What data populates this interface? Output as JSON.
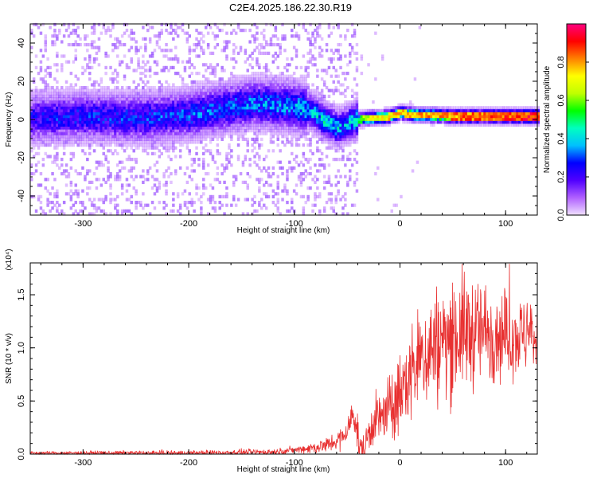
{
  "title": "C2E4.2025.186.22.30.R19",
  "chart_data": [
    {
      "type": "heatmap",
      "xlabel": "Height of straight line (km)",
      "ylabel": "Frequency (Hz)",
      "xlim": [
        -350,
        130
      ],
      "ylim": [
        -50,
        50
      ],
      "xticks": [
        -300,
        -200,
        -100,
        0,
        100
      ],
      "yticks": [
        -40,
        -20,
        0,
        20,
        40
      ],
      "colorbar": {
        "label": "Normalized spectral amplitude",
        "range": [
          0,
          1
        ],
        "ticks": [
          0.0,
          0.2,
          0.4,
          0.6,
          0.8
        ],
        "tick_labels": [
          "0.0",
          "0.2",
          "0.4",
          "0.6",
          "0.8"
        ],
        "colormap": [
          "#f0e0ff",
          "#b060ff",
          "#5000ff",
          "#0000ff",
          "#00c0ff",
          "#00ffc0",
          "#00ff00",
          "#c0ff00",
          "#ffff00",
          "#ff8000",
          "#ff0000",
          "#ff0080"
        ]
      },
      "ridge_center_hz": [
        [
          -350,
          0
        ],
        [
          -300,
          1
        ],
        [
          -250,
          0
        ],
        [
          -200,
          2
        ],
        [
          -160,
          6
        ],
        [
          -140,
          8
        ],
        [
          -120,
          7
        ],
        [
          -100,
          6
        ],
        [
          -90,
          5
        ],
        [
          -80,
          2
        ],
        [
          -70,
          -2
        ],
        [
          -60,
          -5
        ],
        [
          -55,
          -4
        ],
        [
          -45,
          -1
        ],
        [
          -30,
          0
        ],
        [
          -10,
          1
        ],
        [
          0,
          3
        ],
        [
          10,
          2
        ],
        [
          50,
          1
        ],
        [
          100,
          1
        ],
        [
          130,
          1
        ]
      ],
      "peak_amplitude": [
        [
          -350,
          0.28
        ],
        [
          -200,
          0.33
        ],
        [
          -150,
          0.35
        ],
        [
          -100,
          0.38
        ],
        [
          -70,
          0.45
        ],
        [
          -50,
          0.4
        ],
        [
          -30,
          0.72
        ],
        [
          0,
          0.8
        ],
        [
          50,
          0.85
        ],
        [
          100,
          0.9
        ],
        [
          130,
          0.95
        ]
      ]
    },
    {
      "type": "line",
      "xlabel": "Height of straight line (km)",
      "ylabel": "SNR (10 * v/v)",
      "y_multiplier": "(x10⁴)",
      "xlim": [
        -350,
        130
      ],
      "ylim": [
        0,
        1.8
      ],
      "xticks": [
        -300,
        -200,
        -100,
        0,
        100
      ],
      "yticks": [
        0.0,
        0.5,
        1.0,
        1.5
      ],
      "ytick_labels": [
        "0.0",
        "0.5",
        "1.0",
        "1.5"
      ],
      "series": [
        {
          "color": "#e83030",
          "envelope_center": [
            [
              -350,
              0.01
            ],
            [
              -200,
              0.01
            ],
            [
              -120,
              0.02
            ],
            [
              -90,
              0.05
            ],
            [
              -70,
              0.08
            ],
            [
              -55,
              0.15
            ],
            [
              -48,
              0.25
            ],
            [
              -45,
              0.4
            ],
            [
              -42,
              0.3
            ],
            [
              -38,
              0.05
            ],
            [
              -34,
              0.02
            ],
            [
              -30,
              0.2
            ],
            [
              -25,
              0.3
            ],
            [
              -10,
              0.4
            ],
            [
              0,
              0.55
            ],
            [
              10,
              0.75
            ],
            [
              20,
              0.9
            ],
            [
              30,
              1.0
            ],
            [
              40,
              1.05
            ],
            [
              60,
              1.15
            ],
            [
              80,
              1.15
            ],
            [
              100,
              1.12
            ],
            [
              120,
              1.12
            ],
            [
              130,
              1.1
            ]
          ],
          "noise_amplitude": [
            [
              -350,
              0.01
            ],
            [
              -100,
              0.02
            ],
            [
              -60,
              0.06
            ],
            [
              -30,
              0.12
            ],
            [
              0,
              0.25
            ],
            [
              30,
              0.35
            ],
            [
              60,
              0.35
            ],
            [
              90,
              0.28
            ],
            [
              130,
              0.2
            ]
          ]
        }
      ]
    }
  ]
}
